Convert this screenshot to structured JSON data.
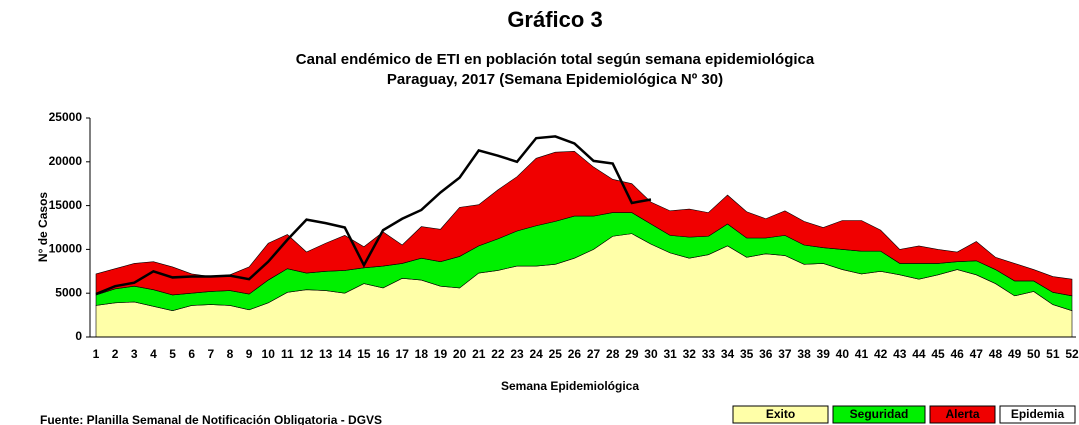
{
  "chart_data": {
    "type": "stacked-area",
    "title": "Gráfico 3",
    "subtitle": [
      "Canal endémico de ETI en población total según semana epidemiológica",
      "Paraguay, 2017 (Semana Epidemiológica Nº 30)"
    ],
    "x_label": "Semana Epidemiológica",
    "y_label": "N° de Casos",
    "source": "Fuente: Planilla Semanal de Notificación Obligatoria - DGVS",
    "categories": [
      "1",
      "2",
      "3",
      "4",
      "5",
      "6",
      "7",
      "8",
      "9",
      "10",
      "11",
      "12",
      "13",
      "14",
      "15",
      "16",
      "17",
      "18",
      "19",
      "20",
      "21",
      "22",
      "23",
      "24",
      "25",
      "26",
      "27",
      "28",
      "29",
      "30",
      "31",
      "32",
      "33",
      "34",
      "35",
      "36",
      "37",
      "38",
      "39",
      "40",
      "41",
      "42",
      "43",
      "44",
      "45",
      "46",
      "47",
      "48",
      "49",
      "50",
      "51",
      "52"
    ],
    "ylim": [
      0,
      25000
    ],
    "yticks": [
      0,
      5000,
      10000,
      15000,
      20000,
      25000
    ],
    "series": [
      {
        "name": "Exito",
        "color": "#ffffa8",
        "values": [
          3600,
          3900,
          4000,
          3500,
          3000,
          3600,
          3700,
          3600,
          3100,
          3900,
          5100,
          5400,
          5300,
          5000,
          6100,
          5600,
          6700,
          6500,
          5800,
          5600,
          7300,
          7600,
          8100,
          8100,
          8300,
          9000,
          10000,
          11500,
          11800,
          10600,
          9600,
          9000,
          9400,
          10400,
          9100,
          9500,
          9300,
          8300,
          8400,
          7700,
          7200,
          7500,
          7100,
          6600,
          7100,
          7700,
          7100,
          6100,
          4700,
          5200,
          3700,
          3000
        ]
      },
      {
        "name": "Seguridad",
        "color": "#00f000",
        "values": [
          1200,
          1600,
          1800,
          1900,
          1800,
          1400,
          1500,
          1700,
          1800,
          2600,
          2700,
          1900,
          2200,
          2600,
          1800,
          2500,
          1700,
          2500,
          2800,
          3600,
          3100,
          3600,
          4000,
          4600,
          4900,
          4800,
          3800,
          2700,
          2400,
          2300,
          2000,
          2400,
          2100,
          2500,
          2200,
          1800,
          2300,
          2200,
          1800,
          2300,
          2600,
          2300,
          1300,
          1800,
          1300,
          900,
          1600,
          1600,
          1700,
          1200,
          1400,
          1700
        ]
      },
      {
        "name": "Alerta",
        "color": "#f00000",
        "values": [
          2400,
          2300,
          2600,
          3200,
          3200,
          2200,
          1700,
          1800,
          3100,
          4200,
          3900,
          2400,
          3200,
          4000,
          2400,
          3900,
          2100,
          3600,
          3700,
          5600,
          4700,
          5600,
          6200,
          7700,
          7900,
          7400,
          5600,
          3800,
          3300,
          2500,
          2800,
          3200,
          2700,
          3300,
          3000,
          2200,
          2800,
          2700,
          2300,
          3300,
          3500,
          2400,
          1600,
          2000,
          1600,
          1100,
          2200,
          1400,
          2000,
          1300,
          1800,
          1900
        ]
      },
      {
        "name": "Epidemia",
        "color": "#ffffff"
      }
    ],
    "line": {
      "color": "#000000",
      "values": [
        4900,
        5800,
        6200,
        7500,
        6800,
        6900,
        6900,
        7000,
        6600,
        8600,
        11100,
        13400,
        13000,
        12500,
        8200,
        12200,
        13500,
        14500,
        16500,
        18200,
        21300,
        20700,
        20000,
        22700,
        22900,
        22100,
        20100,
        19800,
        15300,
        15700,
        null,
        null,
        null,
        null,
        null,
        null,
        null,
        null,
        null,
        null,
        null,
        null,
        null,
        null,
        null,
        null,
        null,
        null,
        null,
        null,
        null,
        null
      ]
    }
  }
}
